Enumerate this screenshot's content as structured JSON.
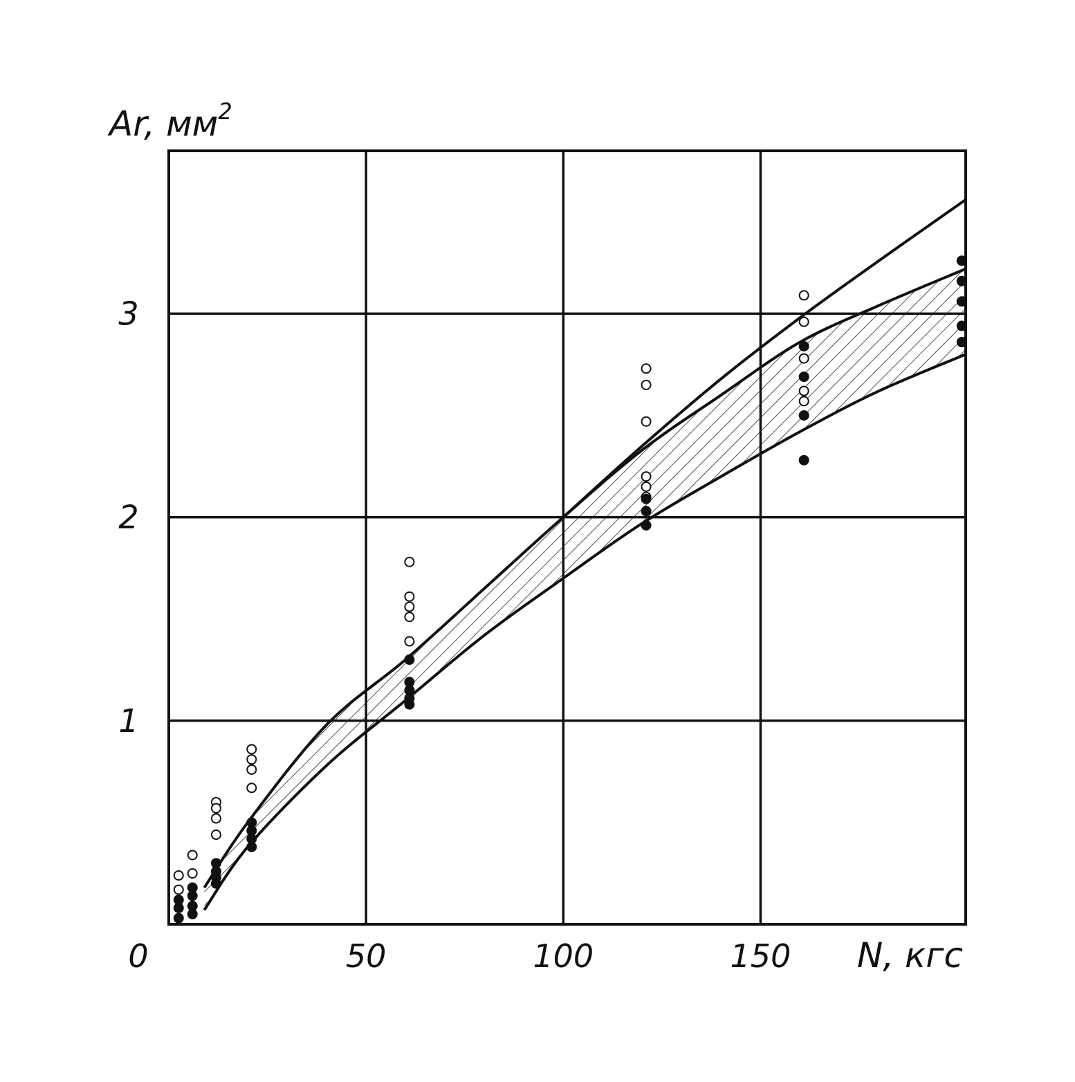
{
  "chart_data": {
    "type": "scatter",
    "title": "",
    "xlabel": "N, кгс",
    "ylabel": "Ar, мм",
    "ylabel_superscript": "2",
    "origin_label": "0",
    "xlim": [
      0,
      202
    ],
    "ylim": [
      0,
      3.8
    ],
    "grid": true,
    "x_ticks": [
      {
        "value": 50,
        "label": "50"
      },
      {
        "value": 100,
        "label": "100"
      },
      {
        "value": 150,
        "label": "150"
      }
    ],
    "y_ticks": [
      {
        "value": 1,
        "label": "1"
      },
      {
        "value": 2,
        "label": "2"
      },
      {
        "value": 3,
        "label": "3"
      }
    ],
    "x_gridlines": [
      50,
      100,
      150,
      202
    ],
    "y_gridlines": [
      1,
      2,
      3,
      3.8
    ],
    "band_upper": {
      "x": [
        9,
        20,
        40,
        60,
        80,
        100,
        120,
        140,
        160,
        180,
        202
      ],
      "y": [
        0.18,
        0.5,
        0.98,
        1.3,
        1.65,
        2.0,
        2.33,
        2.6,
        2.86,
        3.04,
        3.22
      ]
    },
    "band_lower": {
      "x": [
        9,
        20,
        40,
        60,
        80,
        100,
        120,
        140,
        160,
        180,
        202
      ],
      "y": [
        0.07,
        0.38,
        0.78,
        1.1,
        1.42,
        1.7,
        1.97,
        2.2,
        2.42,
        2.62,
        2.8
      ]
    },
    "upper_line": {
      "x": [
        100,
        120,
        140,
        160,
        180,
        202
      ],
      "y": [
        2.0,
        2.35,
        2.68,
        2.98,
        3.26,
        3.56
      ]
    },
    "series": [
      {
        "marker": "open",
        "points": [
          [
            2.5,
            0.24
          ],
          [
            2.5,
            0.17
          ],
          [
            6,
            0.34
          ],
          [
            6,
            0.25
          ],
          [
            12,
            0.6
          ],
          [
            12,
            0.57
          ],
          [
            12,
            0.52
          ],
          [
            12,
            0.44
          ],
          [
            21,
            0.86
          ],
          [
            21,
            0.81
          ],
          [
            21,
            0.76
          ],
          [
            21,
            0.67
          ],
          [
            61,
            1.78
          ],
          [
            61,
            1.61
          ],
          [
            61,
            1.56
          ],
          [
            61,
            1.51
          ],
          [
            61,
            1.39
          ],
          [
            121,
            2.73
          ],
          [
            121,
            2.65
          ],
          [
            121,
            2.47
          ],
          [
            121,
            2.2
          ],
          [
            121,
            2.15
          ],
          [
            121,
            2.1
          ],
          [
            161,
            3.09
          ],
          [
            161,
            2.96
          ],
          [
            161,
            2.78
          ],
          [
            161,
            2.62
          ],
          [
            161,
            2.57
          ]
        ]
      },
      {
        "marker": "filled",
        "points": [
          [
            2.5,
            0.12
          ],
          [
            2.5,
            0.08
          ],
          [
            2.5,
            0.03
          ],
          [
            6,
            0.18
          ],
          [
            6,
            0.14
          ],
          [
            6,
            0.09
          ],
          [
            6,
            0.05
          ],
          [
            12,
            0.3
          ],
          [
            12,
            0.26
          ],
          [
            12,
            0.23
          ],
          [
            12,
            0.2
          ],
          [
            21,
            0.5
          ],
          [
            21,
            0.46
          ],
          [
            21,
            0.42
          ],
          [
            21,
            0.38
          ],
          [
            61,
            1.3
          ],
          [
            61,
            1.19
          ],
          [
            61,
            1.15
          ],
          [
            61,
            1.11
          ],
          [
            61,
            1.08
          ],
          [
            121,
            2.09
          ],
          [
            121,
            2.03
          ],
          [
            121,
            1.96
          ],
          [
            161,
            2.84
          ],
          [
            161,
            2.69
          ],
          [
            161,
            2.5
          ],
          [
            161,
            2.28
          ],
          [
            201,
            3.26
          ],
          [
            201,
            3.16
          ],
          [
            201,
            3.06
          ],
          [
            201,
            2.94
          ],
          [
            201,
            2.86
          ]
        ]
      }
    ]
  }
}
